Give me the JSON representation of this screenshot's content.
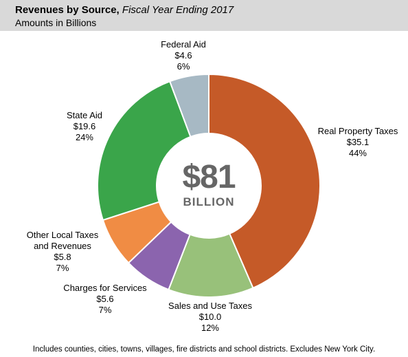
{
  "header": {
    "title_bold": "Revenues by Source,",
    "title_italic": "Fiscal Year Ending 2017",
    "subtitle": "Amounts in Billions"
  },
  "center": {
    "value": "$81",
    "unit": "BILLION"
  },
  "footnote": "Includes counties, cities, towns, villages, fire districts and school districts. Excludes New York City.",
  "chart_data": {
    "type": "pie",
    "title": "Revenues by Source, Fiscal Year Ending 2017",
    "subtitle": "Amounts in Billions",
    "donut": true,
    "slices": [
      {
        "label": "Real Property Taxes",
        "value": 35.1,
        "amount": "$35.1",
        "percent": "44%",
        "color": "#c55a28"
      },
      {
        "label": "Sales and Use Taxes",
        "value": 10.0,
        "amount": "$10.0",
        "percent": "12%",
        "color": "#98c17a"
      },
      {
        "label": "Charges for Services",
        "value": 5.6,
        "amount": "$5.6",
        "percent": "7%",
        "color": "#8b64ae"
      },
      {
        "label": "Other Local Taxes and Revenues",
        "label_lines": [
          "Other Local Taxes",
          "and Revenues"
        ],
        "value": 5.8,
        "amount": "$5.8",
        "percent": "7%",
        "color": "#f08c44"
      },
      {
        "label": "State Aid",
        "value": 19.6,
        "amount": "$19.6",
        "percent": "24%",
        "color": "#3aa54a"
      },
      {
        "label": "Federal Aid",
        "value": 4.6,
        "amount": "$4.6",
        "percent": "6%",
        "color": "#a7b9c4"
      }
    ]
  }
}
